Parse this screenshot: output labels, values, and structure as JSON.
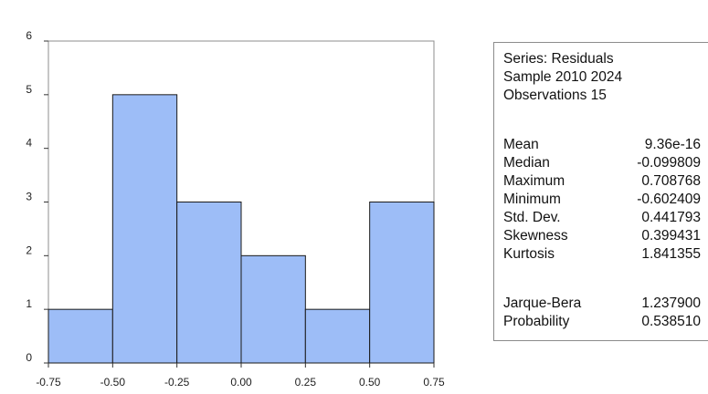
{
  "chart_data": {
    "type": "bar",
    "bins": [
      {
        "from": -0.75,
        "to": -0.5,
        "count": 1
      },
      {
        "from": -0.5,
        "to": -0.25,
        "count": 5
      },
      {
        "from": -0.25,
        "to": 0.0,
        "count": 3
      },
      {
        "from": 0.0,
        "to": 0.25,
        "count": 2
      },
      {
        "from": 0.25,
        "to": 0.5,
        "count": 1
      },
      {
        "from": 0.5,
        "to": 0.75,
        "count": 3
      }
    ],
    "x_ticks": [
      "-0.75",
      "-0.50",
      "-0.25",
      "0.00",
      "0.25",
      "0.50",
      "0.75"
    ],
    "y_ticks": [
      "0",
      "1",
      "2",
      "3",
      "4",
      "5",
      "6"
    ],
    "xlim": [
      -0.75,
      0.75
    ],
    "ylim": [
      0,
      6
    ],
    "title": "",
    "xlabel": "",
    "ylabel": "",
    "grid": false,
    "bar_color": "#9dbdf7",
    "bar_edge_color": "#1a1a1a"
  },
  "stats": {
    "series_label": "Series: Residuals",
    "sample_label": "Sample 2010 2024",
    "observations_label": "Observations 15",
    "rows": [
      {
        "label": "Mean",
        "value": "9.36e-16"
      },
      {
        "label": "Median",
        "value": "-0.099809"
      },
      {
        "label": "Maximum",
        "value": "0.708768"
      },
      {
        "label": "Minimum",
        "value": "-0.602409"
      },
      {
        "label": "Std. Dev.",
        "value": "0.441793"
      },
      {
        "label": "Skewness",
        "value": "0.399431"
      },
      {
        "label": "Kurtosis",
        "value": "1.841355"
      }
    ],
    "test_rows": [
      {
        "label": "Jarque-Bera",
        "value": "1.237900"
      },
      {
        "label": "Probability",
        "value": "0.538510"
      }
    ]
  }
}
